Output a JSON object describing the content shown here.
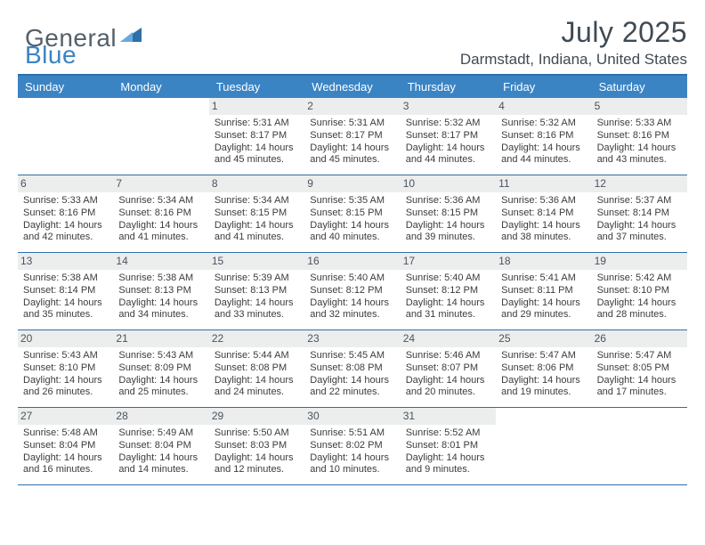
{
  "logo": {
    "word1": "General",
    "word2": "Blue"
  },
  "title": "July 2025",
  "location": "Darmstadt, Indiana, United States",
  "colors": {
    "header_bg": "#3b84c4",
    "border": "#2f6fa8",
    "daynum_bg": "#eceded",
    "text": "#3a3a3a"
  },
  "day_names": [
    "Sunday",
    "Monday",
    "Tuesday",
    "Wednesday",
    "Thursday",
    "Friday",
    "Saturday"
  ],
  "weeks": [
    [
      null,
      null,
      {
        "n": "1",
        "sr": "5:31 AM",
        "ss": "8:17 PM",
        "dl1": "Daylight: 14 hours",
        "dl2": "and 45 minutes."
      },
      {
        "n": "2",
        "sr": "5:31 AM",
        "ss": "8:17 PM",
        "dl1": "Daylight: 14 hours",
        "dl2": "and 45 minutes."
      },
      {
        "n": "3",
        "sr": "5:32 AM",
        "ss": "8:17 PM",
        "dl1": "Daylight: 14 hours",
        "dl2": "and 44 minutes."
      },
      {
        "n": "4",
        "sr": "5:32 AM",
        "ss": "8:16 PM",
        "dl1": "Daylight: 14 hours",
        "dl2": "and 44 minutes."
      },
      {
        "n": "5",
        "sr": "5:33 AM",
        "ss": "8:16 PM",
        "dl1": "Daylight: 14 hours",
        "dl2": "and 43 minutes."
      }
    ],
    [
      {
        "n": "6",
        "sr": "5:33 AM",
        "ss": "8:16 PM",
        "dl1": "Daylight: 14 hours",
        "dl2": "and 42 minutes."
      },
      {
        "n": "7",
        "sr": "5:34 AM",
        "ss": "8:16 PM",
        "dl1": "Daylight: 14 hours",
        "dl2": "and 41 minutes."
      },
      {
        "n": "8",
        "sr": "5:34 AM",
        "ss": "8:15 PM",
        "dl1": "Daylight: 14 hours",
        "dl2": "and 41 minutes."
      },
      {
        "n": "9",
        "sr": "5:35 AM",
        "ss": "8:15 PM",
        "dl1": "Daylight: 14 hours",
        "dl2": "and 40 minutes."
      },
      {
        "n": "10",
        "sr": "5:36 AM",
        "ss": "8:15 PM",
        "dl1": "Daylight: 14 hours",
        "dl2": "and 39 minutes."
      },
      {
        "n": "11",
        "sr": "5:36 AM",
        "ss": "8:14 PM",
        "dl1": "Daylight: 14 hours",
        "dl2": "and 38 minutes."
      },
      {
        "n": "12",
        "sr": "5:37 AM",
        "ss": "8:14 PM",
        "dl1": "Daylight: 14 hours",
        "dl2": "and 37 minutes."
      }
    ],
    [
      {
        "n": "13",
        "sr": "5:38 AM",
        "ss": "8:14 PM",
        "dl1": "Daylight: 14 hours",
        "dl2": "and 35 minutes."
      },
      {
        "n": "14",
        "sr": "5:38 AM",
        "ss": "8:13 PM",
        "dl1": "Daylight: 14 hours",
        "dl2": "and 34 minutes."
      },
      {
        "n": "15",
        "sr": "5:39 AM",
        "ss": "8:13 PM",
        "dl1": "Daylight: 14 hours",
        "dl2": "and 33 minutes."
      },
      {
        "n": "16",
        "sr": "5:40 AM",
        "ss": "8:12 PM",
        "dl1": "Daylight: 14 hours",
        "dl2": "and 32 minutes."
      },
      {
        "n": "17",
        "sr": "5:40 AM",
        "ss": "8:12 PM",
        "dl1": "Daylight: 14 hours",
        "dl2": "and 31 minutes."
      },
      {
        "n": "18",
        "sr": "5:41 AM",
        "ss": "8:11 PM",
        "dl1": "Daylight: 14 hours",
        "dl2": "and 29 minutes."
      },
      {
        "n": "19",
        "sr": "5:42 AM",
        "ss": "8:10 PM",
        "dl1": "Daylight: 14 hours",
        "dl2": "and 28 minutes."
      }
    ],
    [
      {
        "n": "20",
        "sr": "5:43 AM",
        "ss": "8:10 PM",
        "dl1": "Daylight: 14 hours",
        "dl2": "and 26 minutes."
      },
      {
        "n": "21",
        "sr": "5:43 AM",
        "ss": "8:09 PM",
        "dl1": "Daylight: 14 hours",
        "dl2": "and 25 minutes."
      },
      {
        "n": "22",
        "sr": "5:44 AM",
        "ss": "8:08 PM",
        "dl1": "Daylight: 14 hours",
        "dl2": "and 24 minutes."
      },
      {
        "n": "23",
        "sr": "5:45 AM",
        "ss": "8:08 PM",
        "dl1": "Daylight: 14 hours",
        "dl2": "and 22 minutes."
      },
      {
        "n": "24",
        "sr": "5:46 AM",
        "ss": "8:07 PM",
        "dl1": "Daylight: 14 hours",
        "dl2": "and 20 minutes."
      },
      {
        "n": "25",
        "sr": "5:47 AM",
        "ss": "8:06 PM",
        "dl1": "Daylight: 14 hours",
        "dl2": "and 19 minutes."
      },
      {
        "n": "26",
        "sr": "5:47 AM",
        "ss": "8:05 PM",
        "dl1": "Daylight: 14 hours",
        "dl2": "and 17 minutes."
      }
    ],
    [
      {
        "n": "27",
        "sr": "5:48 AM",
        "ss": "8:04 PM",
        "dl1": "Daylight: 14 hours",
        "dl2": "and 16 minutes."
      },
      {
        "n": "28",
        "sr": "5:49 AM",
        "ss": "8:04 PM",
        "dl1": "Daylight: 14 hours",
        "dl2": "and 14 minutes."
      },
      {
        "n": "29",
        "sr": "5:50 AM",
        "ss": "8:03 PM",
        "dl1": "Daylight: 14 hours",
        "dl2": "and 12 minutes."
      },
      {
        "n": "30",
        "sr": "5:51 AM",
        "ss": "8:02 PM",
        "dl1": "Daylight: 14 hours",
        "dl2": "and 10 minutes."
      },
      {
        "n": "31",
        "sr": "5:52 AM",
        "ss": "8:01 PM",
        "dl1": "Daylight: 14 hours",
        "dl2": "and 9 minutes."
      },
      null,
      null
    ]
  ]
}
